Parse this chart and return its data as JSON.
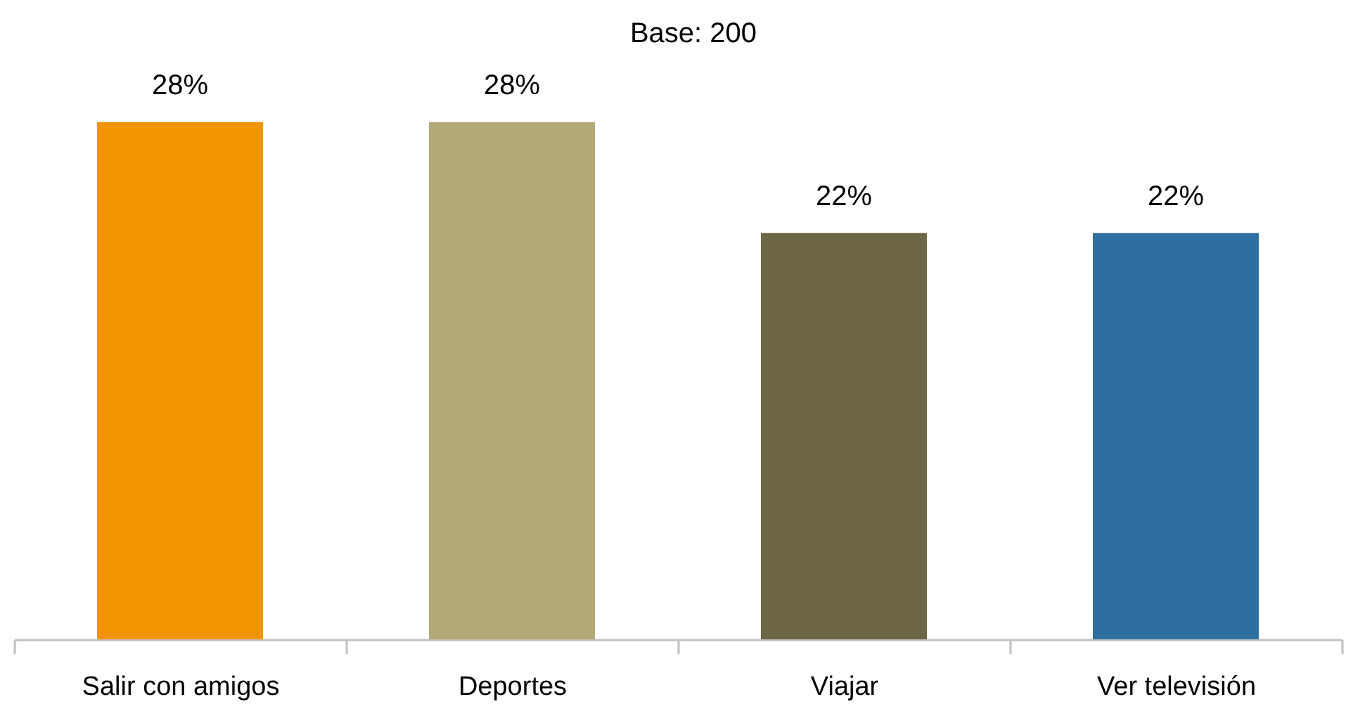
{
  "chart_data": {
    "type": "bar",
    "title": "Base: 200",
    "categories": [
      "Salir con amigos",
      "Deportes",
      "Viajar",
      "Ver televisión"
    ],
    "values": [
      28,
      28,
      22,
      22
    ],
    "value_labels": [
      "28%",
      "28%",
      "22%",
      "22%"
    ],
    "colors": [
      "#f29400",
      "#b4a978",
      "#6d6746",
      "#2f6f9f"
    ]
  }
}
